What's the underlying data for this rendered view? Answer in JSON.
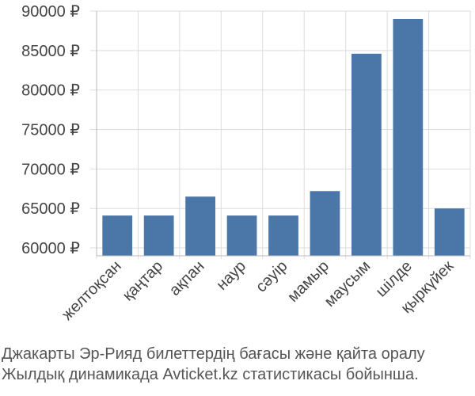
{
  "chart_data": {
    "type": "bar",
    "categories": [
      "желтоқсан",
      "қаңтар",
      "ақпан",
      "наур",
      "сәуір",
      "мамыр",
      "маусым",
      "шілде",
      "қыркүйек"
    ],
    "values": [
      64100,
      64100,
      66500,
      64100,
      64100,
      67200,
      84600,
      89000,
      65000
    ],
    "ylim": [
      59000,
      90000
    ],
    "yticks": [
      60000,
      65000,
      70000,
      75000,
      80000,
      85000,
      90000
    ],
    "ytick_labels": [
      "60000 ₽",
      "65000 ₽",
      "70000 ₽",
      "75000 ₽",
      "80000 ₽",
      "85000 ₽",
      "90000 ₽"
    ],
    "bar_color": "#4a76a8",
    "grid": true,
    "caption_line1": "Джакарты Эр-Рияд билеттердің бағасы және қайта оралу",
    "caption_line2": "Жылдық динамикада Avticket.kz статистикасы бойынша."
  }
}
